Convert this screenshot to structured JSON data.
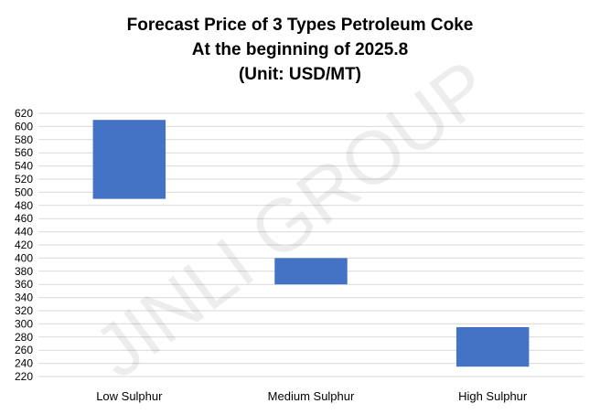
{
  "chart_data": {
    "type": "bar",
    "subtype": "floating-range",
    "title_lines": [
      "Forecast Price of 3 Types Petroleum Coke",
      "At the beginning of 2025.8",
      "(Unit: USD/MT)"
    ],
    "categories": [
      "Low Sulphur",
      "Medium Sulphur",
      "High Sulphur"
    ],
    "series": [
      {
        "low": [
          490,
          360,
          235
        ],
        "high": [
          610,
          400,
          295
        ]
      }
    ],
    "xlabel": "",
    "ylabel": "",
    "ylim": [
      220,
      620
    ],
    "yticks": [
      220,
      240,
      260,
      280,
      300,
      320,
      340,
      360,
      380,
      400,
      420,
      440,
      460,
      480,
      500,
      520,
      540,
      560,
      580,
      600,
      620
    ],
    "grid": true,
    "legend": "none",
    "bar_color": "#4472C4",
    "grid_color": "#D9D9D9",
    "watermark": "JINLI GROUP"
  }
}
